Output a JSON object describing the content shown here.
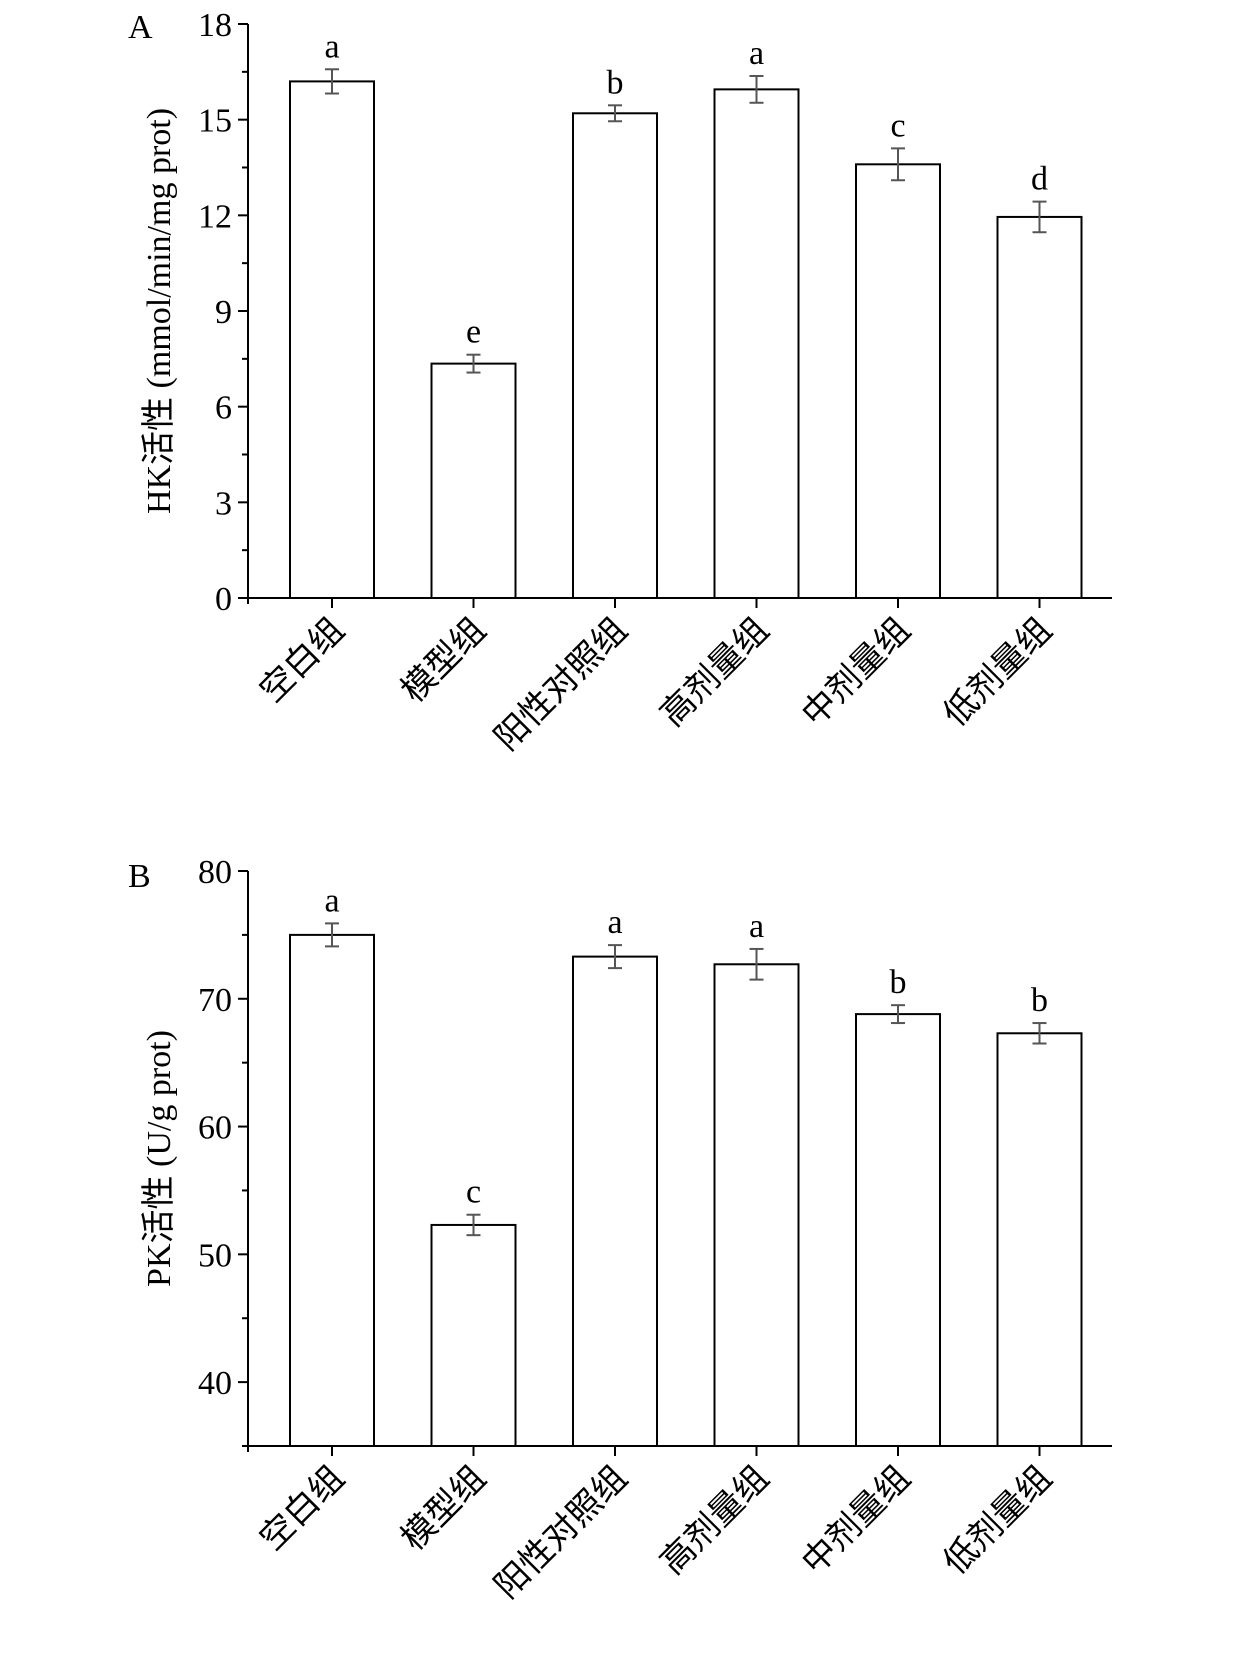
{
  "chart_data": [
    {
      "type": "bar",
      "panel": "A",
      "categories": [
        "空白组",
        "模型组",
        "阳性对照组",
        "高剂量组",
        "中剂量组",
        "低剂量组"
      ],
      "values": [
        16.2,
        7.35,
        15.2,
        15.95,
        13.6,
        11.95
      ],
      "errors": [
        0.38,
        0.28,
        0.25,
        0.42,
        0.5,
        0.48
      ],
      "sig_letters": [
        "a",
        "e",
        "b",
        "a",
        "c",
        "d"
      ],
      "ylabel": "HK活性 (mmol/min/mg prot)",
      "ylim": [
        0,
        18
      ],
      "yticks": [
        0,
        3,
        6,
        9,
        12,
        15,
        18
      ],
      "grid": false
    },
    {
      "type": "bar",
      "panel": "B",
      "categories": [
        "空白组",
        "模型组",
        "阳性对照组",
        "高剂量组",
        "中剂量组",
        "低剂量组"
      ],
      "values": [
        75.0,
        52.3,
        73.3,
        72.7,
        68.8,
        67.3
      ],
      "errors": [
        0.9,
        0.8,
        0.9,
        1.2,
        0.7,
        0.8
      ],
      "sig_letters": [
        "a",
        "c",
        "a",
        "a",
        "b",
        "b"
      ],
      "ylabel": "PK活性 (U/g prot)",
      "ylim": [
        35,
        80
      ],
      "yticks": [
        40,
        50,
        60,
        70,
        80
      ],
      "grid": false
    }
  ]
}
